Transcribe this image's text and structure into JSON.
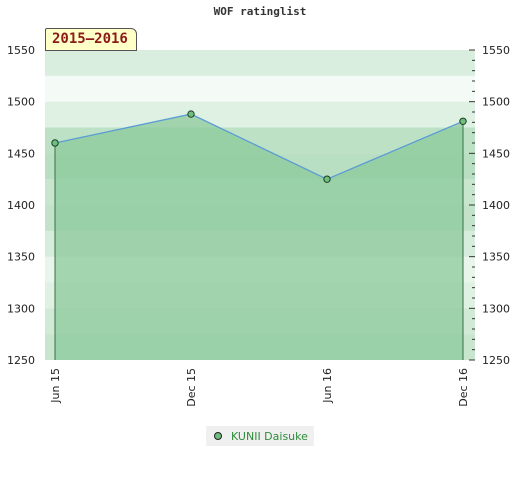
{
  "title": "WOF ratinglist",
  "period_label": "2015–2016",
  "colors": {
    "line": "#5b9bd5",
    "area": "#8cc99b",
    "marker": "#6cbf7c",
    "legend_text": "#2e8b3a"
  },
  "chart_data": {
    "type": "line",
    "title": "WOF ratinglist",
    "categories": [
      "Jun 15",
      "Dec 15",
      "Jun 16",
      "Dec 16"
    ],
    "series": [
      {
        "name": "KUNII Daisuke",
        "values": [
          1460,
          1488,
          1425,
          1481
        ]
      }
    ],
    "yticks": [
      1250,
      1300,
      1350,
      1400,
      1450,
      1500,
      1550
    ],
    "ylim": [
      1250,
      1550
    ],
    "xlabel": "",
    "ylabel": "",
    "legend": "bottom-center",
    "grid": true
  }
}
